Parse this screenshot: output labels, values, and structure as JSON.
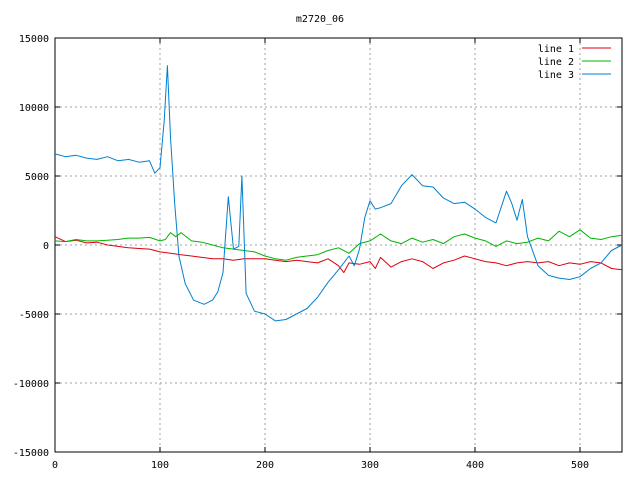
{
  "chart_data": {
    "type": "line",
    "title": "m2720_06",
    "xlabel": "",
    "ylabel": "",
    "xlim": [
      0,
      540
    ],
    "ylim": [
      -15000,
      15000
    ],
    "x_ticks": [
      0,
      100,
      200,
      300,
      400,
      500
    ],
    "y_ticks": [
      -15000,
      -10000,
      -5000,
      0,
      5000,
      10000,
      15000
    ],
    "grid": true,
    "legend_position": "top-right",
    "series": [
      {
        "name": "line 1",
        "color": "#e0000f",
        "points": [
          [
            0,
            600
          ],
          [
            10,
            250
          ],
          [
            20,
            350
          ],
          [
            30,
            150
          ],
          [
            40,
            200
          ],
          [
            50,
            0
          ],
          [
            60,
            -100
          ],
          [
            70,
            -200
          ],
          [
            80,
            -250
          ],
          [
            90,
            -300
          ],
          [
            100,
            -500
          ],
          [
            110,
            -600
          ],
          [
            120,
            -700
          ],
          [
            130,
            -800
          ],
          [
            140,
            -900
          ],
          [
            150,
            -1000
          ],
          [
            160,
            -1000
          ],
          [
            170,
            -1100
          ],
          [
            180,
            -1000
          ],
          [
            190,
            -1000
          ],
          [
            200,
            -1000
          ],
          [
            210,
            -1100
          ],
          [
            220,
            -1200
          ],
          [
            230,
            -1100
          ],
          [
            240,
            -1200
          ],
          [
            250,
            -1300
          ],
          [
            260,
            -1000
          ],
          [
            270,
            -1500
          ],
          [
            275,
            -2000
          ],
          [
            280,
            -1300
          ],
          [
            290,
            -1400
          ],
          [
            300,
            -1200
          ],
          [
            305,
            -1700
          ],
          [
            310,
            -900
          ],
          [
            320,
            -1600
          ],
          [
            330,
            -1200
          ],
          [
            340,
            -1000
          ],
          [
            350,
            -1200
          ],
          [
            360,
            -1700
          ],
          [
            370,
            -1300
          ],
          [
            380,
            -1100
          ],
          [
            390,
            -800
          ],
          [
            400,
            -1000
          ],
          [
            410,
            -1200
          ],
          [
            420,
            -1300
          ],
          [
            430,
            -1500
          ],
          [
            440,
            -1300
          ],
          [
            450,
            -1200
          ],
          [
            460,
            -1300
          ],
          [
            470,
            -1200
          ],
          [
            480,
            -1500
          ],
          [
            490,
            -1300
          ],
          [
            500,
            -1400
          ],
          [
            510,
            -1200
          ],
          [
            520,
            -1300
          ],
          [
            530,
            -1700
          ],
          [
            540,
            -1800
          ]
        ]
      },
      {
        "name": "line 2",
        "color": "#00b400",
        "points": [
          [
            0,
            300
          ],
          [
            10,
            250
          ],
          [
            20,
            400
          ],
          [
            30,
            300
          ],
          [
            40,
            300
          ],
          [
            50,
            350
          ],
          [
            60,
            400
          ],
          [
            70,
            500
          ],
          [
            80,
            500
          ],
          [
            90,
            550
          ],
          [
            100,
            300
          ],
          [
            105,
            400
          ],
          [
            110,
            900
          ],
          [
            115,
            600
          ],
          [
            120,
            900
          ],
          [
            130,
            300
          ],
          [
            140,
            200
          ],
          [
            150,
            0
          ],
          [
            160,
            -200
          ],
          [
            170,
            -300
          ],
          [
            180,
            -400
          ],
          [
            190,
            -500
          ],
          [
            200,
            -800
          ],
          [
            210,
            -1000
          ],
          [
            220,
            -1100
          ],
          [
            230,
            -900
          ],
          [
            240,
            -800
          ],
          [
            250,
            -700
          ],
          [
            260,
            -400
          ],
          [
            270,
            -200
          ],
          [
            280,
            -600
          ],
          [
            290,
            100
          ],
          [
            300,
            300
          ],
          [
            310,
            800
          ],
          [
            320,
            300
          ],
          [
            330,
            100
          ],
          [
            340,
            500
          ],
          [
            350,
            200
          ],
          [
            360,
            400
          ],
          [
            370,
            100
          ],
          [
            380,
            600
          ],
          [
            390,
            800
          ],
          [
            400,
            500
          ],
          [
            410,
            300
          ],
          [
            420,
            -100
          ],
          [
            430,
            300
          ],
          [
            440,
            100
          ],
          [
            450,
            200
          ],
          [
            460,
            500
          ],
          [
            470,
            300
          ],
          [
            480,
            1000
          ],
          [
            490,
            600
          ],
          [
            500,
            1100
          ],
          [
            510,
            500
          ],
          [
            520,
            400
          ],
          [
            530,
            600
          ],
          [
            540,
            700
          ]
        ]
      },
      {
        "name": "line 3",
        "color": "#0080d0",
        "points": [
          [
            0,
            6600
          ],
          [
            10,
            6400
          ],
          [
            20,
            6500
          ],
          [
            30,
            6300
          ],
          [
            40,
            6200
          ],
          [
            50,
            6400
          ],
          [
            60,
            6100
          ],
          [
            70,
            6200
          ],
          [
            80,
            6000
          ],
          [
            90,
            6100
          ],
          [
            95,
            5200
          ],
          [
            100,
            5600
          ],
          [
            104,
            9000
          ],
          [
            107,
            13000
          ],
          [
            110,
            7800
          ],
          [
            114,
            3000
          ],
          [
            118,
            -800
          ],
          [
            124,
            -2800
          ],
          [
            132,
            -4000
          ],
          [
            142,
            -4300
          ],
          [
            150,
            -4000
          ],
          [
            155,
            -3400
          ],
          [
            160,
            -2000
          ],
          [
            165,
            3500
          ],
          [
            170,
            -300
          ],
          [
            175,
            -100
          ],
          [
            178,
            5000
          ],
          [
            182,
            -3500
          ],
          [
            190,
            -4800
          ],
          [
            200,
            -5000
          ],
          [
            210,
            -5500
          ],
          [
            220,
            -5400
          ],
          [
            230,
            -5000
          ],
          [
            240,
            -4600
          ],
          [
            250,
            -3800
          ],
          [
            260,
            -2700
          ],
          [
            270,
            -1800
          ],
          [
            280,
            -800
          ],
          [
            285,
            -1500
          ],
          [
            290,
            -300
          ],
          [
            295,
            2000
          ],
          [
            300,
            3200
          ],
          [
            305,
            2600
          ],
          [
            310,
            2700
          ],
          [
            320,
            3000
          ],
          [
            330,
            4300
          ],
          [
            340,
            5100
          ],
          [
            350,
            4300
          ],
          [
            360,
            4200
          ],
          [
            370,
            3400
          ],
          [
            380,
            3000
          ],
          [
            390,
            3100
          ],
          [
            400,
            2600
          ],
          [
            410,
            2000
          ],
          [
            420,
            1600
          ],
          [
            430,
            3900
          ],
          [
            435,
            3000
          ],
          [
            440,
            1800
          ],
          [
            445,
            3300
          ],
          [
            450,
            600
          ],
          [
            460,
            -1500
          ],
          [
            470,
            -2200
          ],
          [
            480,
            -2400
          ],
          [
            490,
            -2500
          ],
          [
            500,
            -2300
          ],
          [
            510,
            -1700
          ],
          [
            520,
            -1300
          ],
          [
            530,
            -400
          ],
          [
            540,
            0
          ]
        ]
      }
    ]
  }
}
